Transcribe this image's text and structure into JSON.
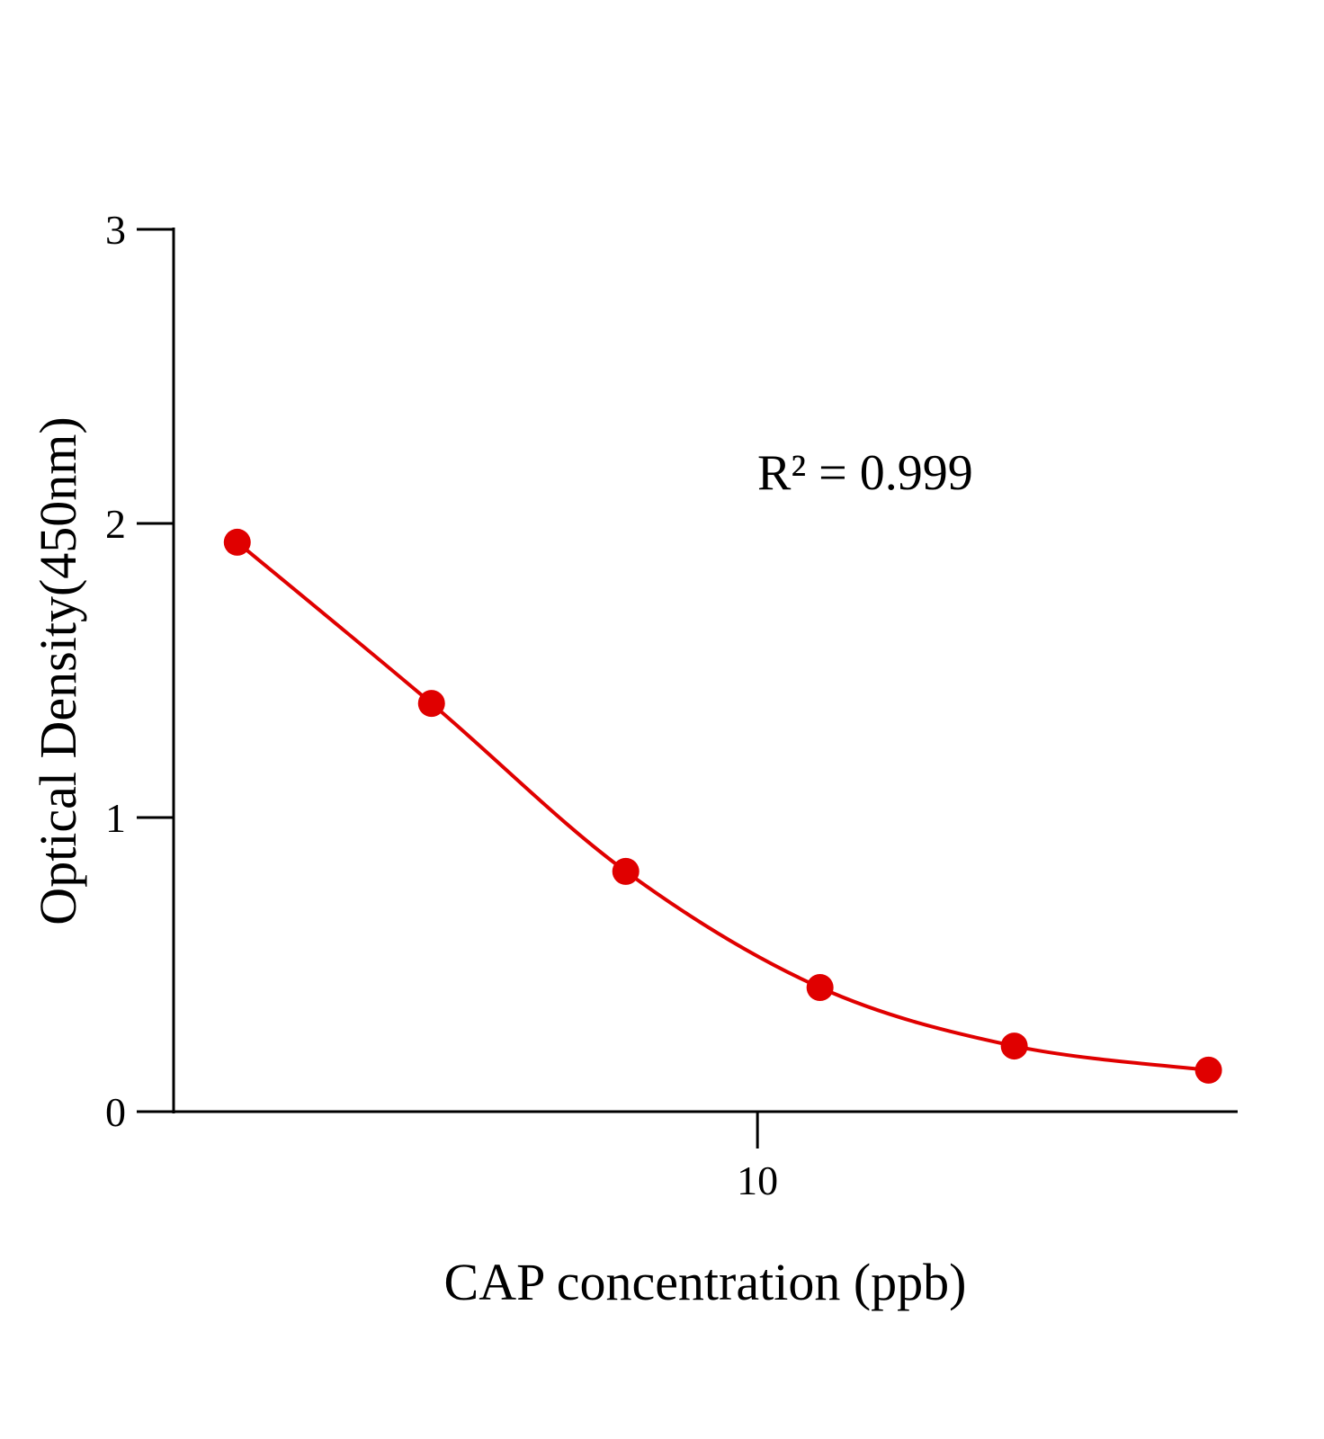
{
  "chart_data": {
    "type": "line",
    "title": "",
    "xlabel": "CAP concentration (ppb)",
    "ylabel": "Optical Density(450nm)",
    "x_scale": "log",
    "xlim": [
      1.245,
      55.3
    ],
    "ylim": [
      0,
      3
    ],
    "x_ticks": [
      {
        "value": 10,
        "label": "10"
      }
    ],
    "y_ticks": [
      {
        "value": 0,
        "label": "0"
      },
      {
        "value": 1,
        "label": "1"
      },
      {
        "value": 2,
        "label": "2"
      },
      {
        "value": 3,
        "label": "3"
      }
    ],
    "grid": false,
    "annotation": "R² = 0.999",
    "series_color": "#e00000",
    "series": [
      {
        "x": [
          1.5625,
          3.125,
          6.25,
          12.5,
          25,
          50
        ],
        "y": [
          1.936,
          1.388,
          0.817,
          0.422,
          0.223,
          0.141
        ]
      }
    ]
  }
}
